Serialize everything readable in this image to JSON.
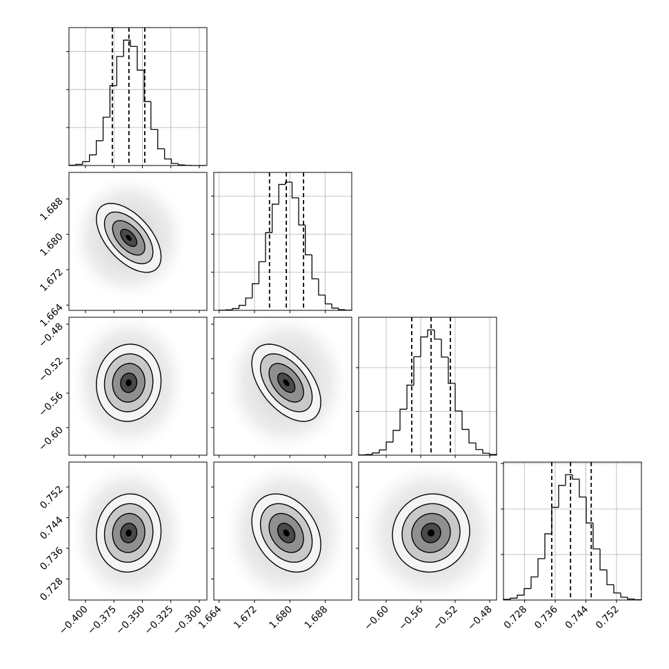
{
  "chart_data": {
    "type": "corner",
    "grid": true,
    "color": "#000000",
    "levels": [
      0.5,
      1,
      1.5,
      2
    ],
    "params": [
      {
        "lim": [
          -0.4145,
          -0.2933
        ],
        "ticks": [
          {
            "value": -0.4,
            "label": "−0.400"
          },
          {
            "value": -0.375,
            "label": "−0.375"
          },
          {
            "value": -0.35,
            "label": "−0.350"
          },
          {
            "value": -0.325,
            "label": "−0.325"
          },
          {
            "value": -0.3,
            "label": "−0.300"
          }
        ],
        "mean": -0.362,
        "std": 0.0142
      },
      {
        "lim": [
          1.6628,
          1.694
        ],
        "ticks": [
          1.664,
          1.672,
          {
            "value": 1.68,
            "label": "1.680"
          },
          1.688
        ],
        "mean": 1.6792,
        "std": 0.0039
      },
      {
        "lim": [
          -0.632,
          -0.472
        ],
        "ticks": [
          {
            "value": -0.6,
            "label": "−0.60"
          },
          {
            "value": -0.56,
            "label": "−0.56"
          },
          {
            "value": -0.52,
            "label": "−0.52"
          },
          {
            "value": -0.48,
            "label": "−0.48"
          }
        ],
        "mean": -0.548,
        "std": 0.0224
      },
      {
        "lim": [
          0.7225,
          0.7585
        ],
        "ticks": [
          0.728,
          0.736,
          0.744,
          0.752
        ],
        "mean": 0.74,
        "std": 0.0051
      }
    ],
    "histograms": [
      {
        "bins": [
          -0.4145,
          -0.4085,
          -0.4025,
          -0.3965,
          -0.3905,
          -0.3845,
          -0.3785,
          -0.3725,
          -0.3665,
          -0.3605,
          -0.3545,
          -0.3485,
          -0.3425,
          -0.3365,
          -0.3305,
          -0.3245,
          -0.3185,
          -0.3125,
          -0.3065,
          -0.3005,
          -0.2945
        ],
        "counts": [
          4,
          15,
          51,
          140,
          326,
          635,
          1050,
          1435,
          1650,
          1568,
          1255,
          841,
          475,
          220,
          86,
          27,
          8,
          2,
          0,
          0
        ],
        "ylim": [
          0,
          1815
        ],
        "yticks": [
          500,
          1000,
          1500
        ],
        "quantiles": [
          -0.3764,
          -0.3618,
          -0.3479
        ]
      },
      {
        "bins": [
          1.664,
          1.6655,
          1.667,
          1.6685,
          1.67,
          1.6715,
          1.673,
          1.6745,
          1.676,
          1.6775,
          1.679,
          1.6805,
          1.682,
          1.6835,
          1.685,
          1.6865,
          1.688,
          1.6895,
          1.691,
          1.6925,
          1.694
        ],
        "counts": [
          2,
          7,
          23,
          66,
          162,
          349,
          638,
          1020,
          1393,
          1652,
          1683,
          1476,
          1120,
          729,
          414,
          200,
          85,
          30,
          9,
          2
        ],
        "ylim": [
          0,
          1810
        ],
        "yticks": [
          500,
          1000,
          1500
        ],
        "quantiles": [
          1.6754,
          1.6792,
          1.6831
        ]
      },
      {
        "bins": [
          -0.632,
          -0.624,
          -0.616,
          -0.608,
          -0.6,
          -0.592,
          -0.584,
          -0.576,
          -0.568,
          -0.56,
          -0.552,
          -0.544,
          -0.536,
          -0.528,
          -0.52,
          -0.512,
          -0.504,
          -0.496,
          -0.488,
          -0.48,
          -0.472
        ],
        "counts": [
          6,
          16,
          52,
          120,
          300,
          566,
          1050,
          1600,
          2250,
          2700,
          2860,
          2650,
          2240,
          1640,
          1010,
          590,
          280,
          130,
          45,
          15
        ],
        "ylim": [
          0,
          3150
        ],
        "yticks": [
          1000,
          2000
        ],
        "quantiles": [
          -0.5704,
          -0.548,
          -0.5256
        ]
      },
      {
        "bins": [
          0.7225,
          0.7243,
          0.7261,
          0.7279,
          0.7297,
          0.7315,
          0.7333,
          0.7351,
          0.7369,
          0.7387,
          0.7405,
          0.7423,
          0.7441,
          0.7459,
          0.7477,
          0.7495,
          0.7513,
          0.7531,
          0.7549,
          0.7567,
          0.7585
        ],
        "counts": [
          14,
          41,
          107,
          251,
          508,
          909,
          1455,
          2037,
          2518,
          2754,
          2655,
          2263,
          1692,
          1123,
          662,
          337,
          155,
          63,
          22,
          7
        ],
        "ylim": [
          0,
          3030
        ],
        "yticks": [
          1000,
          2000,
          3000
        ],
        "quantiles": [
          0.7351,
          0.74,
          0.7454
        ]
      }
    ],
    "correlation": [
      [
        1
      ],
      [
        -0.55,
        1
      ],
      [
        0.05,
        -0.5,
        1
      ],
      [
        0.05,
        -0.3,
        0.05,
        1
      ]
    ]
  }
}
